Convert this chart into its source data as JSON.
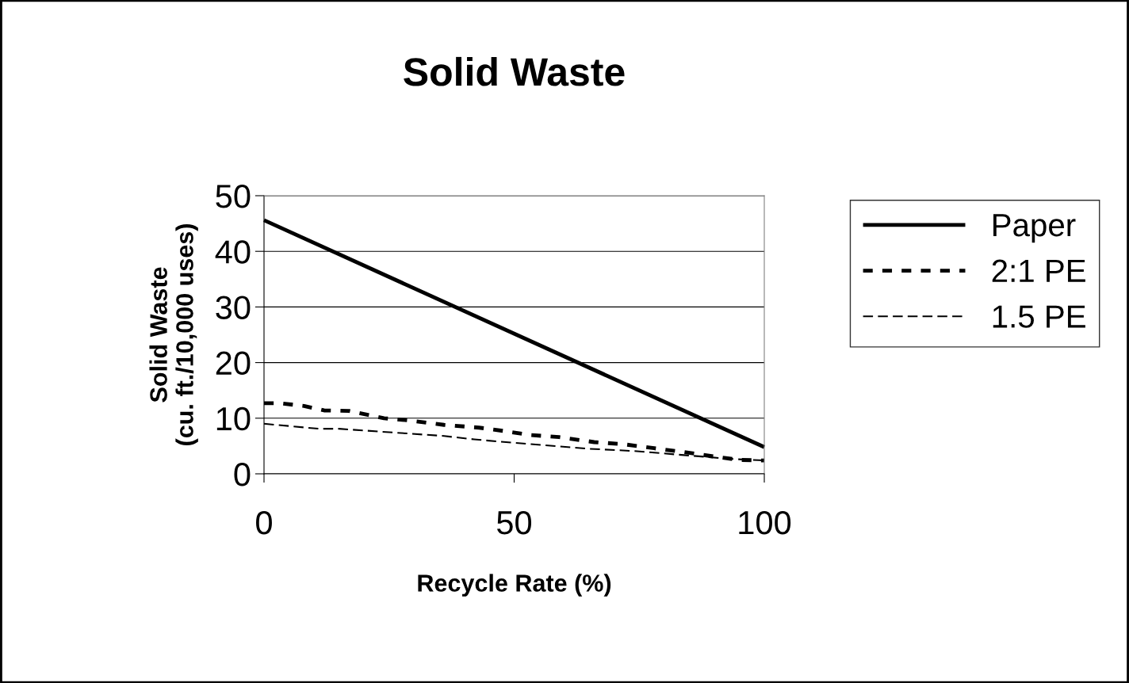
{
  "chart_data": {
    "type": "line",
    "title": "Solid Waste",
    "xlabel": "Recycle Rate (%)",
    "ylabel": "Solid Waste\n(cu. ft./10,000 uses)",
    "xlim": [
      0,
      100
    ],
    "xticks": [
      0,
      50,
      100
    ],
    "ylim": [
      0,
      50
    ],
    "yticks": [
      0,
      10,
      20,
      30,
      40,
      50
    ],
    "grid": "y",
    "legend": "right",
    "series": [
      {
        "name": "Paper",
        "color": "#000000",
        "line_style": "solid",
        "x": [
          0,
          100
        ],
        "values": [
          45.6,
          4.8
        ]
      },
      {
        "name": "2:1 PE",
        "color": "#000000",
        "line_style": "dotted",
        "x": [
          0,
          3,
          8,
          12,
          17,
          24,
          29,
          36,
          43,
          48,
          53,
          59,
          66,
          72,
          78,
          84,
          90,
          95,
          100
        ],
        "values": [
          12.7,
          12.7,
          12.2,
          11.4,
          11.3,
          10.0,
          9.6,
          8.8,
          8.3,
          7.7,
          7.0,
          6.6,
          5.7,
          5.3,
          4.6,
          3.9,
          3.1,
          2.5,
          2.4
        ]
      },
      {
        "name": "1.5 PE",
        "color": "#000000",
        "line_style": "dashed",
        "x": [
          0,
          11,
          15,
          36,
          42,
          47,
          65,
          74,
          93,
          100
        ],
        "values": [
          9.0,
          8.1,
          8.1,
          6.8,
          6.2,
          5.8,
          4.5,
          4.1,
          2.7,
          2.4
        ]
      }
    ]
  }
}
